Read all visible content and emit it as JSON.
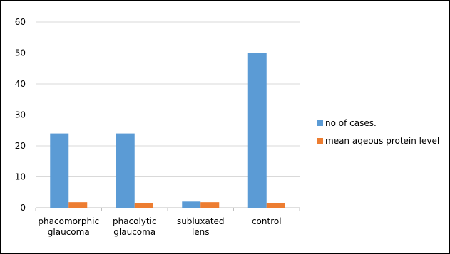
{
  "chart_data": {
    "type": "bar",
    "title": "",
    "xlabel": "",
    "ylabel": "",
    "ylim": [
      0,
      60
    ],
    "yticks": [
      "0",
      "10",
      "20",
      "30",
      "40",
      "50",
      "60"
    ],
    "grid": true,
    "legend_position": "right",
    "categories": [
      [
        "phacomorphic",
        "glaucoma"
      ],
      [
        "phacolytic",
        "glaucoma"
      ],
      [
        "subluxated",
        "lens"
      ],
      [
        "control"
      ]
    ],
    "series": [
      {
        "name": "no of cases.",
        "color": "#5b9bd5",
        "values": [
          24,
          24,
          2,
          50
        ]
      },
      {
        "name": "mean aqeous protein level",
        "color": "#ed7d31",
        "values": [
          1.8,
          1.6,
          1.8,
          1.4
        ]
      }
    ]
  }
}
